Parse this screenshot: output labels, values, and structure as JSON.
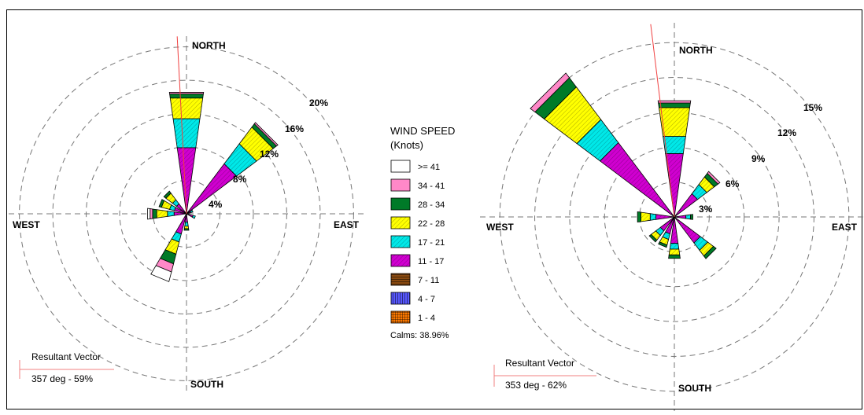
{
  "legend": {
    "title_line1": "WIND SPEED",
    "title_line2": "(Knots)",
    "bins": [
      {
        "label": ">= 41",
        "color": "#ffffff",
        "pattern": "none"
      },
      {
        "label": "34 - 41",
        "color": "#ff88c8",
        "pattern": "none"
      },
      {
        "label": "28 - 34",
        "color": "#007a28",
        "pattern": "none"
      },
      {
        "label": "22 - 28",
        "color": "#ffff00",
        "pattern": "diag"
      },
      {
        "label": "17 - 21",
        "color": "#00e8e8",
        "pattern": "diag"
      },
      {
        "label": "11 - 17",
        "color": "#d000d0",
        "pattern": "diag"
      },
      {
        "label": "7 - 11",
        "color": "#8a4a10",
        "pattern": "hlines"
      },
      {
        "label": "4 - 7",
        "color": "#5858ff",
        "pattern": "vlines"
      },
      {
        "label": "1 - 4",
        "color": "#ff7a00",
        "pattern": "grid"
      }
    ],
    "calms": "Calms: 38.96%"
  },
  "chart_data": [
    {
      "type": "wind_rose",
      "cardinal_labels": {
        "north": "NORTH",
        "east": "EAST",
        "south": "SOUTH",
        "west": "WEST"
      },
      "ring_labels": [
        "4%",
        "8%",
        "12%",
        "16%",
        "20%"
      ],
      "rings": [
        4,
        8,
        12,
        16,
        20
      ],
      "rmax": 21,
      "resultant_vector": {
        "label": "Resultant Vector",
        "value": "357 deg - 59%",
        "direction_deg": 357
      },
      "directions": [
        {
          "deg": 0,
          "bins": {
            "11 - 17": 8.0,
            "17 - 21": 3.5,
            "22 - 28": 2.5,
            "28 - 34": 0.5,
            "34 - 41": 0.2
          }
        },
        {
          "deg": 45,
          "bins": {
            "11 - 17": 7.5,
            "17 - 21": 3.0,
            "22 - 28": 2.5,
            "28 - 34": 0.5,
            "34 - 41": 0.2
          }
        },
        {
          "deg": 67.5,
          "bins": {
            "11 - 17": 0.5,
            "17 - 21": 0.3
          }
        },
        {
          "deg": 112.5,
          "bins": {
            "11 - 17": 0.8,
            "17 - 21": 0.3
          }
        },
        {
          "deg": 180,
          "bins": {
            "11 - 17": 1.0,
            "17 - 21": 0.5,
            "22 - 28": 0.3,
            "28 - 34": 0.2
          }
        },
        {
          "deg": 202.5,
          "bins": {
            "11 - 17": 2.5,
            "17 - 21": 1.0,
            "22 - 28": 1.5,
            "28 - 34": 1.2,
            "34 - 41": 1.0,
            ">= 41": 1.2
          }
        },
        {
          "deg": 270,
          "bins": {
            "11 - 17": 1.5,
            "17 - 21": 0.8,
            "22 - 28": 1.3,
            "28 - 34": 0.5,
            "34 - 41": 0.3,
            ">= 41": 0.3
          }
        },
        {
          "deg": 292.5,
          "bins": {
            "11 - 17": 1.5,
            "17 - 21": 0.6,
            "22 - 28": 1.0,
            "28 - 34": 0.3
          }
        },
        {
          "deg": 315,
          "bins": {
            "11 - 17": 1.5,
            "17 - 21": 0.6,
            "22 - 28": 1.0,
            "28 - 34": 0.3
          }
        }
      ]
    },
    {
      "type": "wind_rose",
      "cardinal_labels": {
        "north": "NORTH",
        "east": "EAST",
        "south": "SOUTH",
        "west": "WEST"
      },
      "ring_labels": [
        "3%",
        "6%",
        "9%",
        "12%",
        "15%"
      ],
      "rings": [
        3,
        6,
        9,
        12,
        15
      ],
      "rmax": 16.5,
      "resultant_vector": {
        "label": "Resultant Vector",
        "value": "353 deg - 62%",
        "direction_deg": 353
      },
      "directions": [
        {
          "deg": 0,
          "bins": {
            "11 - 17": 5.5,
            "17 - 21": 1.5,
            "22 - 28": 2.5,
            "28 - 34": 0.4,
            "34 - 41": 0.2
          }
        },
        {
          "deg": 45,
          "bins": {
            "11 - 17": 2.5,
            "17 - 21": 1.0,
            "22 - 28": 0.8,
            "28 - 34": 0.4,
            "34 - 41": 0.2
          }
        },
        {
          "deg": 90,
          "bins": {
            "11 - 17": 1.0,
            "17 - 21": 0.4,
            "28 - 34": 0.2
          }
        },
        {
          "deg": 135,
          "bins": {
            "11 - 17": 2.8,
            "17 - 21": 0.8,
            "22 - 28": 0.6,
            "28 - 34": 0.3
          }
        },
        {
          "deg": 180,
          "bins": {
            "11 - 17": 2.3,
            "17 - 21": 0.5,
            "22 - 28": 0.5,
            "28 - 34": 0.3
          }
        },
        {
          "deg": 202.5,
          "bins": {
            "11 - 17": 1.5,
            "17 - 21": 0.5,
            "22 - 28": 0.5,
            "28 - 34": 0.2
          }
        },
        {
          "deg": 225,
          "bins": {
            "11 - 17": 1.5,
            "17 - 21": 0.5,
            "22 - 28": 0.5,
            "28 - 34": 0.2
          }
        },
        {
          "deg": 270,
          "bins": {
            "11 - 17": 1.6,
            "17 - 21": 0.5,
            "22 - 28": 0.8,
            "28 - 34": 0.3
          }
        },
        {
          "deg": 315,
          "bins": {
            "11 - 17": 8.0,
            "17 - 21": 2.5,
            "22 - 28": 3.5,
            "28 - 34": 1.0,
            "34 - 41": 0.5
          }
        }
      ]
    }
  ]
}
